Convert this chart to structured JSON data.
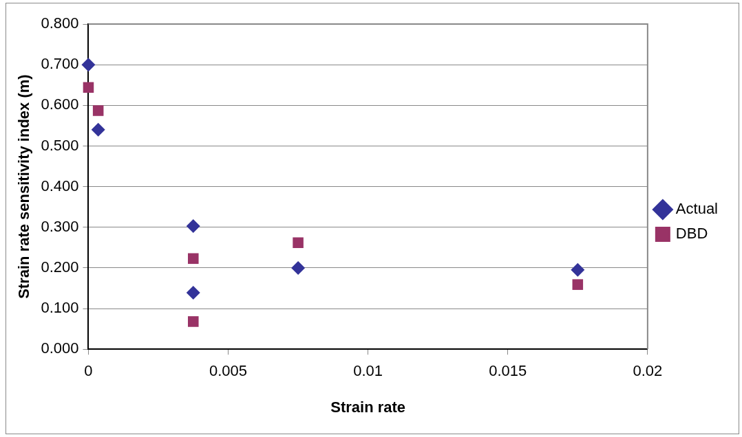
{
  "chart_data": {
    "type": "scatter",
    "xlabel": "Strain rate",
    "ylabel": "Strain rate sensitivity index (m)",
    "xlim": [
      0,
      0.02
    ],
    "xticks": [
      {
        "value": 0,
        "label": "0"
      },
      {
        "value": 0.005,
        "label": "0.005"
      },
      {
        "value": 0.01,
        "label": "0.01"
      },
      {
        "value": 0.015,
        "label": "0.015"
      },
      {
        "value": 0.02,
        "label": "0.02"
      }
    ],
    "ylim": [
      0,
      0.8
    ],
    "yticks": [
      {
        "value": 0,
        "label": "0.000"
      },
      {
        "value": 0.1,
        "label": "0.100"
      },
      {
        "value": 0.2,
        "label": "0.200"
      },
      {
        "value": 0.3,
        "label": "0.300"
      },
      {
        "value": 0.4,
        "label": "0.400"
      },
      {
        "value": 0.5,
        "label": "0.500"
      },
      {
        "value": 0.6,
        "label": "0.600"
      },
      {
        "value": 0.7,
        "label": "0.700"
      },
      {
        "value": 0.8,
        "label": "0.800"
      }
    ],
    "grid": "y",
    "legend": "right",
    "series": [
      {
        "name": "Actual",
        "color": "#333399",
        "marker": "diamond",
        "x": [
          0,
          0.00035,
          0.00375,
          0.00375,
          0.0075,
          0.0175
        ],
        "values": [
          0.7,
          0.54,
          0.303,
          0.139,
          0.2,
          0.195
        ]
      },
      {
        "name": "DBD",
        "color": "#993366",
        "marker": "square",
        "x": [
          0,
          0.00035,
          0.00375,
          0.00375,
          0.0075,
          0.0175
        ],
        "values": [
          0.644,
          0.587,
          0.223,
          0.068,
          0.262,
          0.159
        ]
      }
    ]
  }
}
